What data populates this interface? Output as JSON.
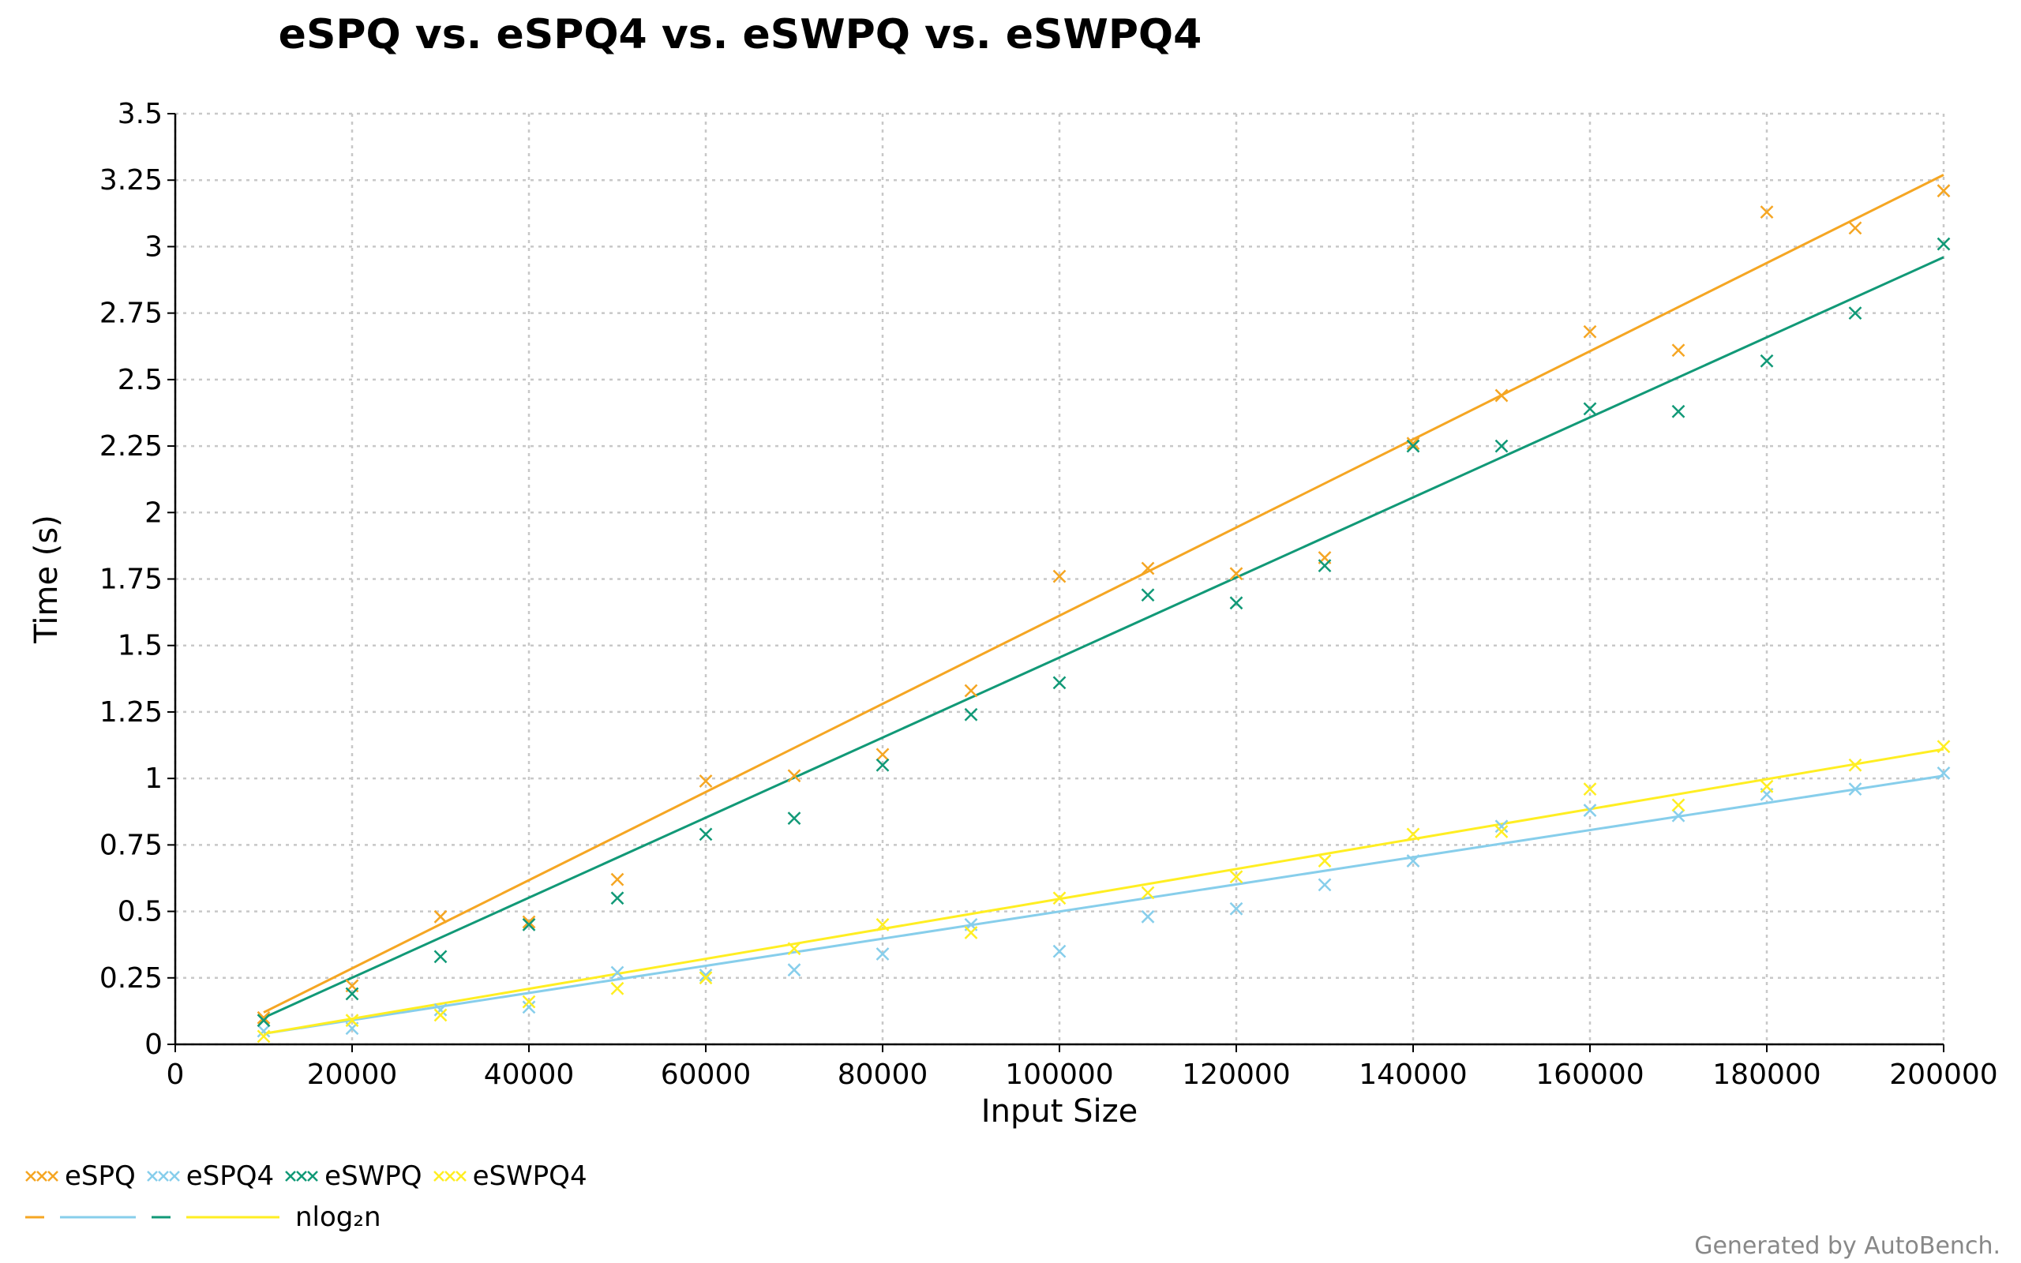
{
  "chart_data": {
    "type": "scatter",
    "title": "eSPQ vs. eSPQ4 vs. eSWPQ vs. eSWPQ4",
    "xlabel": "Input Size",
    "ylabel": "Time (s)",
    "xlim": [
      0,
      200000
    ],
    "ylim": [
      0,
      3.5
    ],
    "xticks": [
      0,
      20000,
      40000,
      60000,
      80000,
      100000,
      120000,
      140000,
      160000,
      180000,
      200000
    ],
    "yticks": [
      0,
      0.25,
      0.5,
      0.75,
      1,
      1.25,
      1.5,
      1.75,
      2,
      2.25,
      2.5,
      2.75,
      3,
      3.25,
      3.5
    ],
    "ytick_labels": [
      "0",
      "0.25",
      "0.5",
      "0.75",
      "1",
      "1.25",
      "1.5",
      "1.75",
      "2",
      "2.25",
      "2.5",
      "2.75",
      "3",
      "3.25",
      "3.5"
    ],
    "grid": true,
    "x": [
      10000,
      20000,
      30000,
      40000,
      50000,
      60000,
      70000,
      80000,
      90000,
      100000,
      110000,
      120000,
      130000,
      140000,
      150000,
      160000,
      170000,
      180000,
      190000,
      200000
    ],
    "series": [
      {
        "name": "eSPQ",
        "color": "#f5a623",
        "values": [
          0.1,
          0.22,
          0.48,
          0.46,
          0.62,
          0.99,
          1.01,
          1.09,
          1.33,
          1.76,
          1.79,
          1.77,
          1.83,
          2.26,
          2.44,
          2.68,
          2.61,
          3.13,
          3.07,
          3.21
        ],
        "fit": [
          0.12,
          3.27
        ]
      },
      {
        "name": "eSPQ4",
        "color": "#87ceeb",
        "values": [
          0.05,
          0.06,
          0.13,
          0.14,
          0.27,
          0.26,
          0.28,
          0.34,
          0.45,
          0.35,
          0.48,
          0.51,
          0.6,
          0.69,
          0.82,
          0.88,
          0.86,
          0.94,
          0.96,
          1.02
        ],
        "fit": [
          0.04,
          1.01
        ]
      },
      {
        "name": "eSWPQ",
        "color": "#119977",
        "values": [
          0.09,
          0.19,
          0.33,
          0.45,
          0.55,
          0.79,
          0.85,
          1.05,
          1.24,
          1.36,
          1.69,
          1.66,
          1.8,
          2.25,
          2.25,
          2.39,
          2.38,
          2.57,
          2.75,
          3.01
        ],
        "fit": [
          0.1,
          2.96
        ]
      },
      {
        "name": "eSWPQ4",
        "color": "#ffee22",
        "values": [
          0.03,
          0.09,
          0.11,
          0.16,
          0.21,
          0.25,
          0.36,
          0.45,
          0.42,
          0.55,
          0.57,
          0.63,
          0.69,
          0.79,
          0.8,
          0.96,
          0.9,
          0.97,
          1.05,
          1.12
        ],
        "fit": [
          0.04,
          1.11
        ]
      }
    ],
    "legend": {
      "position": "bottom-left",
      "fit_label": "nlog₂n"
    }
  },
  "footer": "Generated by AutoBench."
}
